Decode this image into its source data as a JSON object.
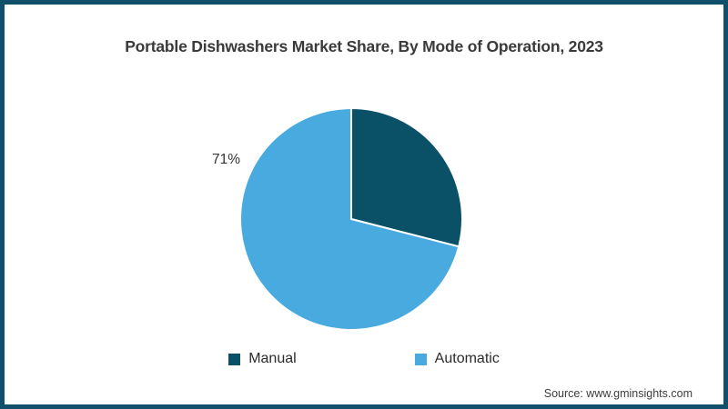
{
  "header": {
    "title": "Portable Dishwashers Market Share, By Mode of Operation, 2023"
  },
  "footer": {
    "source": "Source: www.gminsights.com"
  },
  "page": {
    "border_color": "#11506a",
    "background": "#ffffff"
  },
  "chart_data": {
    "type": "pie",
    "title": "Portable Dishwashers Market Share, By Mode of Operation, 2023",
    "categories": [
      "Manual",
      "Automatic"
    ],
    "values": [
      29,
      71
    ],
    "segments": [
      {
        "label": "Manual",
        "value": 29,
        "color": "#0a5168",
        "data_label": ""
      },
      {
        "label": "Automatic",
        "value": 71,
        "color": "#49aadf",
        "data_label": "71%"
      }
    ],
    "start_angle_deg": 0,
    "direction": "clockwise",
    "separator_color": "#ffffff",
    "legend_position": "bottom",
    "legend": [
      "Manual",
      "Automatic"
    ],
    "shown_data_labels": [
      "71%"
    ]
  }
}
